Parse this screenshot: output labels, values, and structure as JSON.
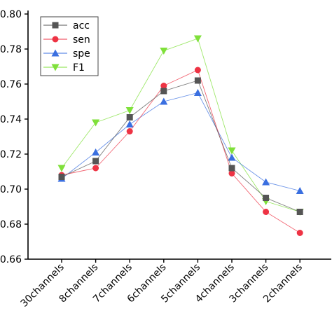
{
  "chart_data": {
    "type": "line",
    "categories": [
      "30channels",
      "8channels",
      "7channels",
      "6channels",
      "5channels",
      "4channels",
      "3channels",
      "2channels"
    ],
    "ylim": [
      0.66,
      0.8
    ],
    "yticks": [
      "0.66",
      "0.68",
      "0.70",
      "0.72",
      "0.74",
      "0.76",
      "0.78",
      "0.80"
    ],
    "xlabel": "",
    "ylabel": "",
    "title": "",
    "grid": false,
    "legend_position": "top-left",
    "series": [
      {
        "name": "acc",
        "color": "#555555",
        "marker": "square",
        "values": [
          0.707,
          0.716,
          0.741,
          0.756,
          0.762,
          0.712,
          0.695,
          0.687
        ]
      },
      {
        "name": "sen",
        "color": "#ee3344",
        "marker": "circle",
        "values": [
          0.708,
          0.712,
          0.733,
          0.759,
          0.768,
          0.709,
          0.687,
          0.675
        ]
      },
      {
        "name": "spe",
        "color": "#3a6fe0",
        "marker": "triangle-up",
        "values": [
          0.706,
          0.721,
          0.737,
          0.75,
          0.755,
          0.718,
          0.704,
          0.699
        ]
      },
      {
        "name": "F1",
        "color": "#7fe03a",
        "marker": "triangle-down",
        "values": [
          0.712,
          0.738,
          0.745,
          0.779,
          0.786,
          0.722,
          0.693,
          0.687
        ]
      }
    ]
  }
}
